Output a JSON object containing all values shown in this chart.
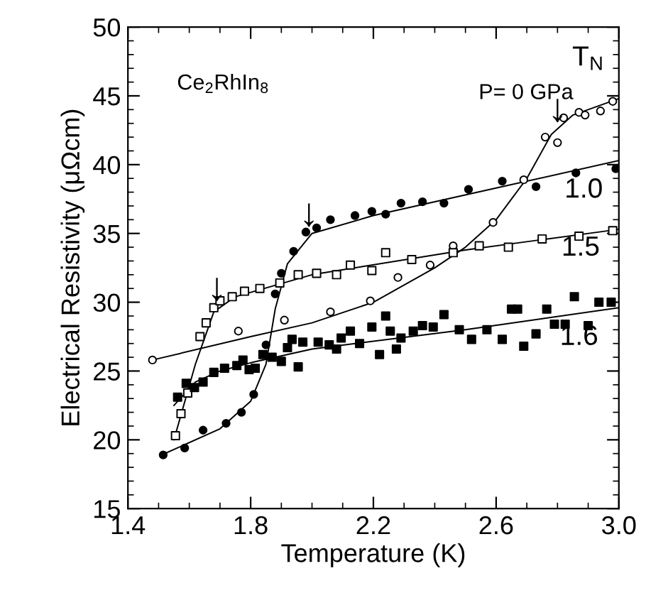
{
  "chart_data": {
    "type": "scatter",
    "xlabel": "Temperature (K)",
    "ylabel": "Electrical Resistivity (μΩcm)",
    "xlim": [
      1.4,
      3.0
    ],
    "xticks": [
      {
        "value": 1.4,
        "label": "1.4"
      },
      {
        "value": 1.8,
        "label": "1.8"
      },
      {
        "value": 2.2,
        "label": "2.2"
      },
      {
        "value": 2.6,
        "label": "2.6"
      },
      {
        "value": 3.0,
        "label": "3.0"
      }
    ],
    "ylim": [
      15,
      50
    ],
    "yticks": [
      15,
      20,
      25,
      30,
      35,
      40,
      45,
      50
    ],
    "grid": false,
    "legend": "right",
    "annotations": [
      "Ce$_{2}$RhIn$_{8}$",
      "T$_{N}$",
      {
        "text": "↓",
        "x": 2.8,
        "y": 43.0
      },
      {
        "text": "↓",
        "x": 1.99,
        "y": 35.4
      },
      {
        "text": "↓",
        "x": 1.69,
        "y": 30.0
      }
    ],
    "series": [
      {
        "name": "P= 0 GPa",
        "marker": "circle-open",
        "color": "#000000",
        "x": [
          1.48,
          1.76,
          1.91,
          2.06,
          2.19,
          2.28,
          2.385,
          2.46,
          2.59,
          2.69,
          2.76,
          2.8,
          2.82,
          2.87,
          2.89,
          2.94,
          2.98
        ],
        "values": [
          25.8,
          27.9,
          28.7,
          29.3,
          30.1,
          31.8,
          32.7,
          34.1,
          35.8,
          38.9,
          42.0,
          41.6,
          43.4,
          43.8,
          43.6,
          43.9,
          44.6
        ]
      },
      {
        "name": "1.0",
        "marker": "circle",
        "color": "#000000",
        "x": [
          1.515,
          1.585,
          1.645,
          1.72,
          1.77,
          1.81,
          1.85,
          1.88,
          1.9,
          1.94,
          1.98,
          2.015,
          2.06,
          2.14,
          2.195,
          2.24,
          2.29,
          2.36,
          2.43,
          2.51,
          2.62,
          2.73,
          2.86,
          2.99
        ],
        "values": [
          18.9,
          19.4,
          20.7,
          21.2,
          22.0,
          23.3,
          26.9,
          30.6,
          32.1,
          33.7,
          35.1,
          35.4,
          36.0,
          36.3,
          36.6,
          36.4,
          37.2,
          37.3,
          37.2,
          38.2,
          38.8,
          38.4,
          39.4,
          39.7
        ]
      },
      {
        "name": "1.5",
        "marker": "square-open",
        "color": "#000000",
        "x": [
          1.555,
          1.573,
          1.595,
          1.635,
          1.655,
          1.68,
          1.7,
          1.74,
          1.78,
          1.83,
          1.895,
          1.955,
          2.015,
          2.08,
          2.125,
          2.195,
          2.24,
          2.325,
          2.46,
          2.545,
          2.64,
          2.75,
          2.87,
          2.98
        ],
        "values": [
          20.3,
          21.9,
          23.4,
          27.5,
          28.5,
          29.6,
          30.1,
          30.4,
          30.8,
          31.0,
          31.4,
          32.0,
          32.1,
          32.0,
          32.7,
          32.3,
          33.6,
          33.1,
          33.6,
          34.1,
          34.0,
          34.6,
          34.8,
          35.2
        ]
      },
      {
        "name": "1.6",
        "marker": "square",
        "color": "#000000",
        "x": [
          1.562,
          1.59,
          1.617,
          1.645,
          1.68,
          1.715,
          1.755,
          1.775,
          1.795,
          1.815,
          1.84,
          1.87,
          1.9,
          1.92,
          1.935,
          1.955,
          1.97,
          2.02,
          2.056,
          2.08,
          2.095,
          2.125,
          2.155,
          2.195,
          2.22,
          2.24,
          2.255,
          2.275,
          2.29,
          2.33,
          2.36,
          2.395,
          2.43,
          2.48,
          2.52,
          2.57,
          2.62,
          2.65,
          2.67,
          2.69,
          2.73,
          2.765,
          2.79,
          2.825,
          2.855,
          2.9,
          2.935,
          2.975
        ],
        "values": [
          23.1,
          24.1,
          23.8,
          24.2,
          24.9,
          25.2,
          25.4,
          25.8,
          25.1,
          25.2,
          26.2,
          26.0,
          25.7,
          26.7,
          27.3,
          25.3,
          27.1,
          27.1,
          26.9,
          26.6,
          27.4,
          27.9,
          27.0,
          28.2,
          26.2,
          29.0,
          27.9,
          26.6,
          27.4,
          27.9,
          28.3,
          28.2,
          29.1,
          28.0,
          27.3,
          28.0,
          27.3,
          29.5,
          29.5,
          26.8,
          27.7,
          29.5,
          28.4,
          28.4,
          30.4,
          28.3,
          30.0,
          30.0
        ]
      },
      {
        "type": "line",
        "color": "#000000",
        "x": [
          1.48,
          1.8,
          2.0,
          2.2,
          2.4,
          2.5,
          2.6,
          2.7,
          2.78,
          2.85,
          3.0
        ],
        "values": [
          25.8,
          27.5,
          28.5,
          30.0,
          32.5,
          34.0,
          36.0,
          39.0,
          42.2,
          43.6,
          44.8
        ]
      },
      {
        "type": "line",
        "color": "#000000",
        "x": [
          1.52,
          1.7,
          1.8,
          1.85,
          1.88,
          1.92,
          2.0,
          2.2,
          2.6,
          3.0
        ],
        "values": [
          19.0,
          20.8,
          22.8,
          25.5,
          29.5,
          32.8,
          35.0,
          36.3,
          38.3,
          40.3
        ]
      },
      {
        "type": "line",
        "color": "#000000",
        "x": [
          1.55,
          1.62,
          1.68,
          1.75,
          2.0,
          2.5,
          3.0
        ],
        "values": [
          20.0,
          25.5,
          29.3,
          30.4,
          32.0,
          33.8,
          35.3
        ]
      },
      {
        "type": "line",
        "color": "#000000",
        "x": [
          1.55,
          1.62,
          1.7,
          1.8,
          2.0,
          2.5,
          3.0
        ],
        "values": [
          22.5,
          24.2,
          25.0,
          25.6,
          26.6,
          28.0,
          29.6
        ]
      }
    ]
  }
}
